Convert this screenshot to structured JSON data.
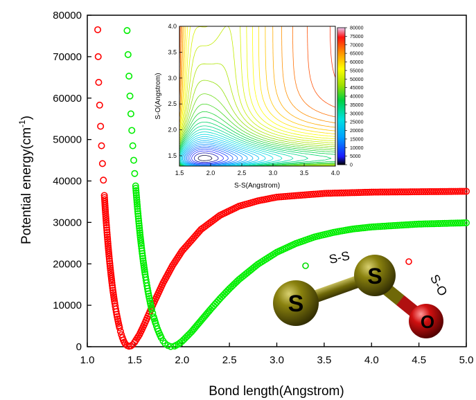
{
  "chart_data": [
    {
      "type": "scatter",
      "xlabel": "Bond length(Angstrom)",
      "ylabel": "Potential energy(cm",
      "ylabel_sup": "-1",
      "ylabel_close": ")",
      "xlim": [
        1.0,
        5.0
      ],
      "ylim": [
        0,
        80000
      ],
      "xticks": [
        "1.0",
        "1.5",
        "2.0",
        "2.5",
        "3.0",
        "3.5",
        "4.0",
        "4.5",
        "5.0"
      ],
      "yticks": [
        "0",
        "10000",
        "20000",
        "30000",
        "40000",
        "50000",
        "60000",
        "70000",
        "80000"
      ],
      "series": [
        {
          "color": "#ff0000",
          "marker": "open-circle",
          "legend_marker_for": "S-O",
          "points": [
            [
              1.11,
              76500
            ],
            [
              1.115,
              70000
            ],
            [
              1.12,
              63800
            ],
            [
              1.13,
              58300
            ],
            [
              1.14,
              53200
            ],
            [
              1.15,
              48500
            ],
            [
              1.16,
              44200
            ],
            [
              1.17,
              40200
            ],
            [
              1.18,
              36500
            ],
            [
              1.19,
              33000
            ],
            [
              1.2,
              29900
            ],
            [
              1.21,
              27000
            ],
            [
              1.22,
              24300
            ],
            [
              1.23,
              21800
            ],
            [
              1.24,
              19500
            ],
            [
              1.25,
              17400
            ],
            [
              1.26,
              15400
            ],
            [
              1.27,
              13600
            ],
            [
              1.28,
              12000
            ],
            [
              1.29,
              10500
            ],
            [
              1.3,
              9100
            ],
            [
              1.31,
              7800
            ],
            [
              1.32,
              6700
            ],
            [
              1.33,
              5600
            ],
            [
              1.34,
              4600
            ],
            [
              1.35,
              3700
            ],
            [
              1.36,
              2900
            ],
            [
              1.37,
              2200
            ],
            [
              1.38,
              1600
            ],
            [
              1.39,
              1100
            ],
            [
              1.4,
              700
            ],
            [
              1.42,
              300
            ],
            [
              1.44,
              100
            ],
            [
              1.46,
              200
            ],
            [
              1.48,
              500
            ],
            [
              1.5,
              1100
            ],
            [
              1.55,
              2900
            ],
            [
              1.6,
              5300
            ],
            [
              1.65,
              7900
            ],
            [
              1.7,
              10500
            ],
            [
              1.8,
              15400
            ],
            [
              1.9,
              19600
            ],
            [
              2.0,
              23100
            ],
            [
              2.2,
              28300
            ],
            [
              2.4,
              31700
            ],
            [
              2.6,
              33900
            ],
            [
              2.8,
              35200
            ],
            [
              3.0,
              36100
            ],
            [
              3.5,
              37000
            ],
            [
              4.0,
              37300
            ],
            [
              4.5,
              37400
            ],
            [
              5.0,
              37500
            ]
          ]
        },
        {
          "color": "#00ee00",
          "marker": "open-circle",
          "legend_marker_for": "S-S",
          "points": [
            [
              1.42,
              76300
            ],
            [
              1.43,
              70500
            ],
            [
              1.44,
              65300
            ],
            [
              1.45,
              60500
            ],
            [
              1.46,
              56200
            ],
            [
              1.47,
              52200
            ],
            [
              1.48,
              48500
            ],
            [
              1.49,
              45000
            ],
            [
              1.5,
              41800
            ],
            [
              1.51,
              38800
            ],
            [
              1.52,
              36000
            ],
            [
              1.53,
              33300
            ],
            [
              1.54,
              30900
            ],
            [
              1.55,
              28600
            ],
            [
              1.56,
              26400
            ],
            [
              1.57,
              24400
            ],
            [
              1.58,
              22500
            ],
            [
              1.59,
              20700
            ],
            [
              1.6,
              19100
            ],
            [
              1.61,
              17500
            ],
            [
              1.62,
              16100
            ],
            [
              1.63,
              14700
            ],
            [
              1.64,
              13400
            ],
            [
              1.65,
              12200
            ],
            [
              1.66,
              11100
            ],
            [
              1.67,
              10000
            ],
            [
              1.68,
              9000
            ],
            [
              1.69,
              8100
            ],
            [
              1.7,
              7200
            ],
            [
              1.72,
              5700
            ],
            [
              1.74,
              4300
            ],
            [
              1.76,
              3200
            ],
            [
              1.78,
              2200
            ],
            [
              1.8,
              1400
            ],
            [
              1.82,
              800
            ],
            [
              1.85,
              300
            ],
            [
              1.88,
              50
            ],
            [
              1.92,
              150
            ],
            [
              1.96,
              600
            ],
            [
              2.0,
              1300
            ],
            [
              2.1,
              3600
            ],
            [
              2.2,
              6300
            ],
            [
              2.3,
              9000
            ],
            [
              2.4,
              11600
            ],
            [
              2.5,
              14000
            ],
            [
              2.6,
              16200
            ],
            [
              2.8,
              19900
            ],
            [
              3.0,
              22800
            ],
            [
              3.2,
              24900
            ],
            [
              3.4,
              26500
            ],
            [
              3.6,
              27600
            ],
            [
              3.8,
              28400
            ],
            [
              4.0,
              28900
            ],
            [
              4.5,
              29600
            ],
            [
              5.0,
              29900
            ]
          ]
        }
      ]
    },
    {
      "type": "heatmap",
      "subtype": "contour",
      "xlabel": "S-S(Angstrom)",
      "ylabel": "S-O(Angstrom)",
      "xlim": [
        1.5,
        4.0
      ],
      "ylim": [
        1.3,
        4.0
      ],
      "xticks": [
        "1.5",
        "2.0",
        "2.5",
        "3.0",
        "3.5",
        "4.0"
      ],
      "yticks": [
        "1.5",
        "2.0",
        "2.5",
        "3.0",
        "3.5",
        "4.0"
      ],
      "colorbar": {
        "range": [
          0,
          80000
        ],
        "ticks": [
          "0",
          "5000",
          "10000",
          "15000",
          "20000",
          "25000",
          "30000",
          "35000",
          "40000",
          "45000",
          "50000",
          "55000",
          "60000",
          "65000",
          "70000",
          "75000",
          "80000"
        ]
      },
      "minimum": {
        "x": 1.9,
        "y": 1.45
      }
    }
  ],
  "molecule": {
    "atoms": [
      {
        "label": "S",
        "color": "#6b6508"
      },
      {
        "label": "S",
        "color": "#6b6508"
      },
      {
        "label": "O",
        "color": "#cc1010"
      }
    ],
    "bond_labels": {
      "ss": "S-S",
      "so": "S-O"
    }
  }
}
